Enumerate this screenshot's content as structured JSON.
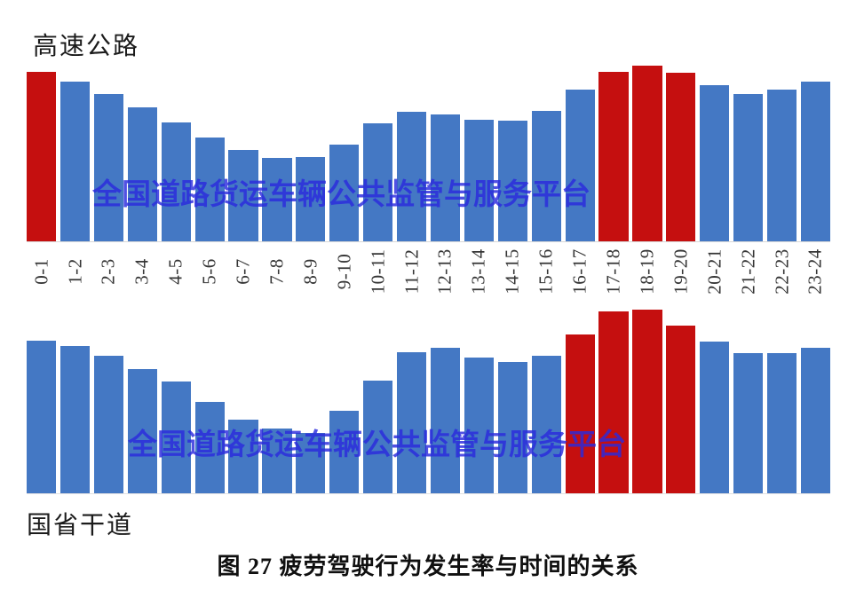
{
  "page": {
    "background": "#ffffff"
  },
  "colors": {
    "bar_blue": "#4478c4",
    "bar_red": "#c50f0f",
    "watermark_blue": "#2b2bdd",
    "tick_label_text": "#353535",
    "title_text": "#1b1b1b"
  },
  "titles": {
    "top_chart": "高速公路",
    "bottom_chart": "国省干道",
    "caption": "图 27 疲劳驾驶行为发生率与时间的关系"
  },
  "watermark": {
    "text": "全国道路货运车辆公共监管与服务平台"
  },
  "chart_data": [
    {
      "type": "bar",
      "title": "高速公路",
      "categories": [
        "0-1",
        "1-2",
        "2-3",
        "3-4",
        "4-5",
        "5-6",
        "6-7",
        "7-8",
        "8-9",
        "9-10",
        "10-11",
        "11-12",
        "12-13",
        "13-14",
        "14-15",
        "15-16",
        "16-17",
        "17-18",
        "18-19",
        "19-20",
        "20-21",
        "21-22",
        "22-23",
        "23-24"
      ],
      "values": [
        95.5,
        90,
        83,
        75.5,
        67,
        58.5,
        51.5,
        47,
        47.5,
        54.5,
        66.5,
        73,
        71.5,
        68.5,
        68,
        73.5,
        85.5,
        95.5,
        99,
        95,
        88,
        83,
        85.5,
        90
      ],
      "bar_color": "#4478c4",
      "highlight_color": "#c50f0f",
      "highlight_indices": [
        0,
        17,
        18,
        19
      ],
      "xlabel": "",
      "ylabel": "",
      "x_labels_visible": true,
      "y_axis_visible": false,
      "ylim": [
        0,
        100
      ],
      "note": "no y-axis shown; values are relative bar heights in percent of plot height"
    },
    {
      "type": "bar",
      "title": "国省干道",
      "categories": [
        "0-1",
        "1-2",
        "2-3",
        "3-4",
        "4-5",
        "5-6",
        "6-7",
        "7-8",
        "8-9",
        "9-10",
        "10-11",
        "11-12",
        "12-13",
        "13-14",
        "14-15",
        "15-16",
        "16-17",
        "17-18",
        "18-19",
        "19-20",
        "20-21",
        "21-22",
        "22-23",
        "23-24"
      ],
      "values": [
        81.5,
        78.5,
        73.5,
        66.5,
        59.5,
        49,
        39.5,
        34.5,
        32,
        44,
        60,
        75.5,
        77.5,
        72.5,
        70,
        73.5,
        85,
        97,
        98,
        89.5,
        81,
        75,
        75,
        77.5
      ],
      "bar_color": "#4478c4",
      "highlight_color": "#c50f0f",
      "highlight_indices": [
        16,
        17,
        18,
        19
      ],
      "xlabel": "",
      "ylabel": "",
      "x_labels_visible": false,
      "y_axis_visible": false,
      "ylim": [
        0,
        100
      ],
      "note": "no y-axis shown; values are relative bar heights in percent of plot height"
    }
  ]
}
